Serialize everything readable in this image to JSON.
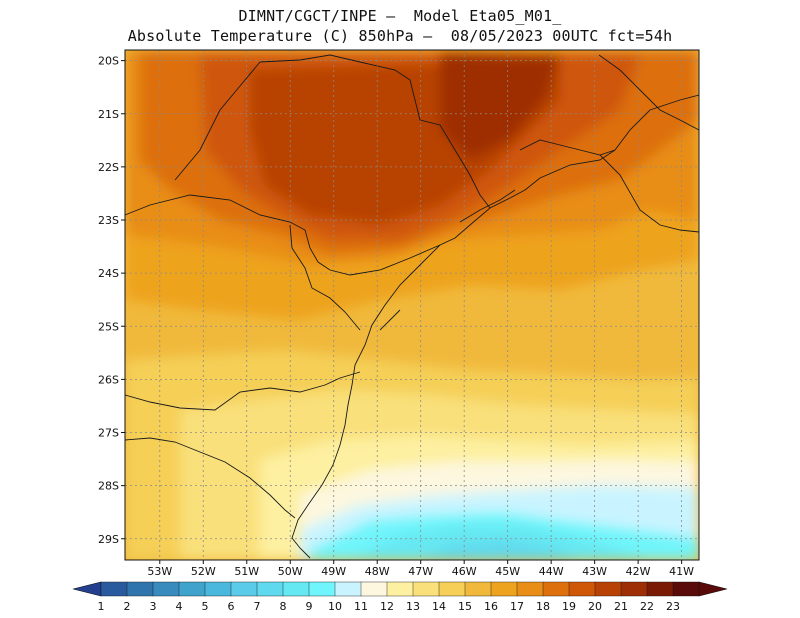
{
  "title": {
    "line1": "DIMNT/CGCT/INPE –  Model Eta05_M01_",
    "line2": "Absolute Temperature (C) 850hPa –  08/05/2023 00UTC fct=54h"
  },
  "map": {
    "lat_labels": [
      "20S",
      "21S",
      "22S",
      "23S",
      "24S",
      "25S",
      "26S",
      "27S",
      "28S",
      "29S"
    ],
    "lon_labels": [
      "53W",
      "52W",
      "51W",
      "50W",
      "49W",
      "48W",
      "47W",
      "46W",
      "45W",
      "44W",
      "43W",
      "42W",
      "41W"
    ],
    "lat_range": [
      -29.4,
      -19.8
    ],
    "lon_range": [
      -53.8,
      -40.6
    ]
  },
  "colorbar": {
    "labels": [
      "1",
      "2",
      "3",
      "4",
      "5",
      "6",
      "7",
      "8",
      "9",
      "10",
      "11",
      "12",
      "13",
      "14",
      "15",
      "16",
      "17",
      "18",
      "19",
      "20",
      "21",
      "22",
      "23"
    ],
    "colors": [
      "#243f8f",
      "#2a5a9e",
      "#2f74ad",
      "#3a8bbd",
      "#3fa3cc",
      "#4ab8dc",
      "#5acbe8",
      "#5fd9ee",
      "#66e8f2",
      "#6ff5fb",
      "#c9f4ff",
      "#fdf7df",
      "#fdf0a0",
      "#f9e07a",
      "#f5cf57",
      "#f0b93c",
      "#eea31f",
      "#e88d16",
      "#dd700d",
      "#cf5708",
      "#b84206",
      "#9e2e05",
      "#7a1a04",
      "#5a0a08"
    ]
  }
}
